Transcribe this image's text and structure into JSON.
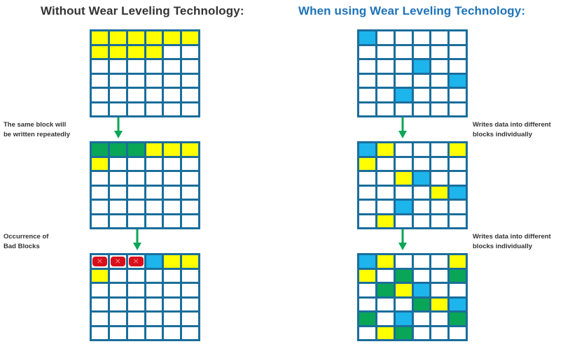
{
  "titles": {
    "left": "Without Wear Leveling Technology:",
    "right": "When using Wear Leveling Technology:"
  },
  "notes": {
    "left_1_line1": "The same block will",
    "left_1_line2": "be written repeatedly",
    "left_2_line1": "Occurrence of",
    "left_2_line2": "Bad Blocks",
    "right_1_line1": "Writes data into different",
    "right_1_line2": "blocks individually",
    "right_2_line1": "Writes data into different",
    "right_2_line2": "blocks individually"
  },
  "colors": {
    "grid_border": "#1a6e9c",
    "empty": "#ffffff",
    "yellow": "#ffff00",
    "blue": "#1eb4ec",
    "green": "#0aa657",
    "bad": "#d8101c",
    "arrow": "#0aa657",
    "title_left": "#333333",
    "title_right": "#1e73b8"
  },
  "legend_codes": {
    "W": "empty block",
    "Y": "written block",
    "B": "written block (leveled)",
    "G": "heavily written block",
    "R": "bad block"
  },
  "grids": {
    "left_1": [
      "YYYYYY",
      "YYYYWW",
      "WWWWWW",
      "WWWWWW",
      "WWWWWW",
      "WWWWWW"
    ],
    "left_2": [
      "GGGYYY",
      "YWWWWW",
      "WWWWWW",
      "WWWWWW",
      "WWWWWW",
      "WWWWWW"
    ],
    "left_3": [
      "RRRBYY",
      "YWWWWW",
      "WWWWWW",
      "WWWWWW",
      "WWWWWW",
      "WWWWWW"
    ],
    "right_1": [
      "BWWWWW",
      "WWWWWW",
      "WWWBWW",
      "WWWWWB",
      "WWBWWW",
      "WWWWWW"
    ],
    "right_2": [
      "BYWWWY",
      "YWWWWW",
      "WWYBWW",
      "WWWWYB",
      "WWBWWW",
      "WYWWWW"
    ],
    "right_3": [
      "BYWWWY",
      "YWGWWG",
      "WGYBWW",
      "WWWGYB",
      "GWBWWG",
      "WYGWWW"
    ]
  }
}
